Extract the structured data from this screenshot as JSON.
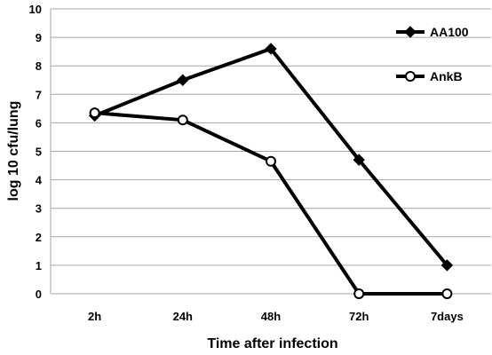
{
  "chart_data": {
    "type": "line",
    "categories": [
      "2h",
      "24h",
      "48h",
      "72h",
      "7days"
    ],
    "series": [
      {
        "name": "AA100",
        "marker": "filled-diamond",
        "color": "#000000",
        "values": [
          6.25,
          7.5,
          8.6,
          4.7,
          1.0
        ]
      },
      {
        "name": "AnkB",
        "marker": "open-circle",
        "color": "#000000",
        "values": [
          6.35,
          6.1,
          4.65,
          0.0,
          0.0
        ]
      }
    ],
    "xlabel": "Time after infection",
    "ylabel": "log 10 cfu/lung",
    "ylim": [
      0,
      10
    ],
    "yticks": [
      "0",
      "1",
      "2",
      "3",
      "4",
      "5",
      "6",
      "7",
      "8",
      "9",
      "10"
    ],
    "grid": "horizontal",
    "legend": "top-right"
  }
}
